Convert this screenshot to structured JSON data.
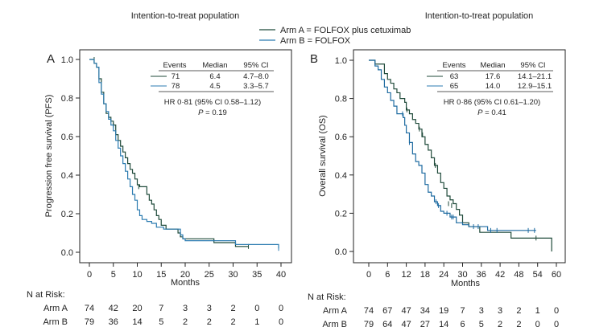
{
  "legend": {
    "entries": [
      {
        "label": "Arm A = FOLFOX plus cetuximab",
        "color": "#1f4a3a"
      },
      {
        "label": "Arm B = FOLFOX",
        "color": "#2b7bb0"
      }
    ]
  },
  "chart_data": [
    {
      "type": "line",
      "panel_label": "A",
      "title": "Intention-to-treat population",
      "xlabel": "Months",
      "ylabel": "Progression free survival (PFS)",
      "xlim": [
        0,
        40
      ],
      "ylim": [
        0,
        1
      ],
      "xticks": [
        0,
        5,
        10,
        15,
        20,
        25,
        30,
        35,
        40
      ],
      "yticks": [
        "0.0",
        "0.2",
        "0.4",
        "0.6",
        "0.8",
        "1.0"
      ],
      "grid": false,
      "series": [
        {
          "name": "Arm A",
          "color": "#1f4a3a",
          "steps": [
            [
              0,
              1.0
            ],
            [
              1,
              0.98
            ],
            [
              1.5,
              0.96
            ],
            [
              2,
              0.9
            ],
            [
              2.5,
              0.83
            ],
            [
              3,
              0.77
            ],
            [
              3.5,
              0.72
            ],
            [
              4,
              0.7
            ],
            [
              4.5,
              0.68
            ],
            [
              5,
              0.66
            ],
            [
              5.5,
              0.61
            ],
            [
              6,
              0.58
            ],
            [
              6.5,
              0.55
            ],
            [
              7,
              0.52
            ],
            [
              7.5,
              0.49
            ],
            [
              8,
              0.46
            ],
            [
              8.5,
              0.43
            ],
            [
              9,
              0.41
            ],
            [
              9.5,
              0.38
            ],
            [
              10,
              0.35
            ],
            [
              10.5,
              0.34
            ],
            [
              12,
              0.3
            ],
            [
              12.5,
              0.27
            ],
            [
              13,
              0.25
            ],
            [
              13.5,
              0.22
            ],
            [
              14,
              0.19
            ],
            [
              14.5,
              0.17
            ],
            [
              15,
              0.14
            ],
            [
              16,
              0.12
            ],
            [
              18.5,
              0.1
            ],
            [
              19,
              0.08
            ],
            [
              19.5,
              0.07
            ],
            [
              26,
              0.05
            ],
            [
              30.5,
              0.03
            ],
            [
              33.2,
              0.03
            ]
          ],
          "censor": [
            [
              1,
              1.0
            ],
            [
              5,
              0.66
            ],
            [
              10.3,
              0.34
            ],
            [
              33.2,
              0.03
            ]
          ]
        },
        {
          "name": "Arm B",
          "color": "#2b7bb0",
          "steps": [
            [
              0,
              1.0
            ],
            [
              1,
              0.98
            ],
            [
              1.5,
              0.96
            ],
            [
              2,
              0.88
            ],
            [
              2.5,
              0.82
            ],
            [
              3,
              0.77
            ],
            [
              3.5,
              0.73
            ],
            [
              4,
              0.69
            ],
            [
              4.5,
              0.66
            ],
            [
              5,
              0.63
            ],
            [
              5.5,
              0.58
            ],
            [
              6,
              0.54
            ],
            [
              6.5,
              0.5
            ],
            [
              7,
              0.46
            ],
            [
              7.5,
              0.42
            ],
            [
              8,
              0.38
            ],
            [
              8.5,
              0.34
            ],
            [
              9,
              0.3
            ],
            [
              9.5,
              0.27
            ],
            [
              10,
              0.22
            ],
            [
              10.5,
              0.19
            ],
            [
              11,
              0.17
            ],
            [
              12,
              0.16
            ],
            [
              13,
              0.15
            ],
            [
              14,
              0.13
            ],
            [
              15.5,
              0.12
            ],
            [
              19,
              0.09
            ],
            [
              19.5,
              0.07
            ],
            [
              20,
              0.06
            ],
            [
              26,
              0.06
            ],
            [
              30.5,
              0.04
            ],
            [
              39.5,
              0.02
            ]
          ],
          "censor": [
            [
              39.5,
              0.02
            ]
          ]
        }
      ],
      "stats_table": {
        "headers": [
          "Events",
          "Median",
          "95% CI"
        ],
        "rows": [
          {
            "events": "71",
            "median": "6.4",
            "ci": "4.7–8.0"
          },
          {
            "events": "78",
            "median": "4.5",
            "ci": "3.3–5.7"
          }
        ],
        "hr": "HR 0·81 (95% CI 0.58–1.12)",
        "p_label": "P",
        "p_value": " = 0.19"
      },
      "risk_table": {
        "title": "N at Risk:",
        "rows": [
          {
            "label": "Arm A",
            "values": [
              "74",
              "42",
              "20",
              "7",
              "3",
              "3",
              "2",
              "0",
              "0"
            ]
          },
          {
            "label": "Arm B",
            "values": [
              "79",
              "36",
              "14",
              "5",
              "2",
              "2",
              "2",
              "1",
              "0"
            ]
          }
        ]
      }
    },
    {
      "type": "line",
      "panel_label": "B",
      "title": "Intention-to-treat population",
      "xlabel": "Months",
      "ylabel": "Overall survival (OS)",
      "xlim": [
        0,
        60
      ],
      "ylim": [
        0,
        1
      ],
      "xticks": [
        0,
        6,
        12,
        18,
        24,
        30,
        36,
        42,
        48,
        54,
        60
      ],
      "yticks": [
        "0.0",
        "0.2",
        "0.4",
        "0.6",
        "0.8",
        "1.0"
      ],
      "grid": false,
      "series": [
        {
          "name": "Arm A",
          "color": "#1f4a3a",
          "steps": [
            [
              0,
              1.0
            ],
            [
              2,
              0.98
            ],
            [
              3,
              0.98
            ],
            [
              5,
              0.93
            ],
            [
              6,
              0.9
            ],
            [
              7,
              0.88
            ],
            [
              8,
              0.85
            ],
            [
              9,
              0.83
            ],
            [
              10,
              0.8
            ],
            [
              11,
              0.8
            ],
            [
              11.5,
              0.78
            ],
            [
              12,
              0.74
            ],
            [
              13,
              0.72
            ],
            [
              14,
              0.69
            ],
            [
              15,
              0.67
            ],
            [
              16,
              0.64
            ],
            [
              17,
              0.6
            ],
            [
              18,
              0.56
            ],
            [
              19,
              0.53
            ],
            [
              20,
              0.49
            ],
            [
              21,
              0.45
            ],
            [
              22,
              0.41
            ],
            [
              23,
              0.36
            ],
            [
              24,
              0.33
            ],
            [
              25,
              0.29
            ],
            [
              26,
              0.27
            ],
            [
              27,
              0.25
            ],
            [
              28,
              0.22
            ],
            [
              29,
              0.19
            ],
            [
              30,
              0.15
            ],
            [
              32,
              0.13
            ],
            [
              35,
              0.13
            ],
            [
              35.5,
              0.1
            ],
            [
              45,
              0.1
            ],
            [
              45.5,
              0.07
            ],
            [
              58.5,
              0.07
            ],
            [
              58.5,
              0.0
            ]
          ],
          "censor": [
            [
              12.2,
              0.74
            ],
            [
              16.2,
              0.64
            ],
            [
              17.2,
              0.61
            ],
            [
              21.3,
              0.45
            ],
            [
              25.5,
              0.25
            ],
            [
              26.5,
              0.24
            ],
            [
              53.5,
              0.07
            ]
          ]
        },
        {
          "name": "Arm B",
          "color": "#1d6aa0",
          "steps": [
            [
              0,
              1.0
            ],
            [
              1,
              1.0
            ],
            [
              2,
              0.97
            ],
            [
              3,
              0.95
            ],
            [
              4,
              0.9
            ],
            [
              5,
              0.86
            ],
            [
              6,
              0.83
            ],
            [
              7,
              0.79
            ],
            [
              8,
              0.76
            ],
            [
              9,
              0.72
            ],
            [
              10,
              0.72
            ],
            [
              11,
              0.7
            ],
            [
              11.5,
              0.66
            ],
            [
              12,
              0.62
            ],
            [
              13,
              0.57
            ],
            [
              14,
              0.51
            ],
            [
              15,
              0.47
            ],
            [
              16,
              0.45
            ],
            [
              17,
              0.41
            ],
            [
              18,
              0.35
            ],
            [
              19,
              0.31
            ],
            [
              20,
              0.29
            ],
            [
              21,
              0.26
            ],
            [
              22,
              0.24
            ],
            [
              23,
              0.21
            ],
            [
              24,
              0.2
            ],
            [
              26,
              0.18
            ],
            [
              28,
              0.15
            ],
            [
              30,
              0.14
            ],
            [
              32,
              0.13
            ],
            [
              35,
              0.13
            ],
            [
              38,
              0.11
            ],
            [
              53.5,
              0.11
            ]
          ],
          "censor": [
            [
              10.8,
              0.72
            ],
            [
              13,
              0.57
            ],
            [
              21.5,
              0.26
            ],
            [
              22.3,
              0.24
            ],
            [
              25,
              0.2
            ],
            [
              26.5,
              0.18
            ],
            [
              27,
              0.18
            ],
            [
              33.5,
              0.13
            ],
            [
              35,
              0.13
            ],
            [
              39,
              0.11
            ],
            [
              41,
              0.11
            ],
            [
              51,
              0.11
            ],
            [
              53,
              0.11
            ]
          ]
        }
      ],
      "stats_table": {
        "headers": [
          "Events",
          "Median",
          "95% CI"
        ],
        "rows": [
          {
            "events": "63",
            "median": "17.6",
            "ci": "14.1–21.1"
          },
          {
            "events": "65",
            "median": "14.0",
            "ci": "12.9–15.1"
          }
        ],
        "hr": "HR 0·86 (95% CI 0.61–1.20)",
        "p_label": "P",
        "p_value": " = 0.41"
      },
      "risk_table": {
        "title": "N at Risk:",
        "rows": [
          {
            "label": "Arm A",
            "values": [
              "74",
              "67",
              "47",
              "34",
              "19",
              "7",
              "3",
              "3",
              "2",
              "1",
              "0"
            ]
          },
          {
            "label": "Arm B",
            "values": [
              "79",
              "64",
              "47",
              "27",
              "14",
              "6",
              "5",
              "2",
              "2",
              "0",
              "0"
            ]
          }
        ]
      }
    }
  ]
}
